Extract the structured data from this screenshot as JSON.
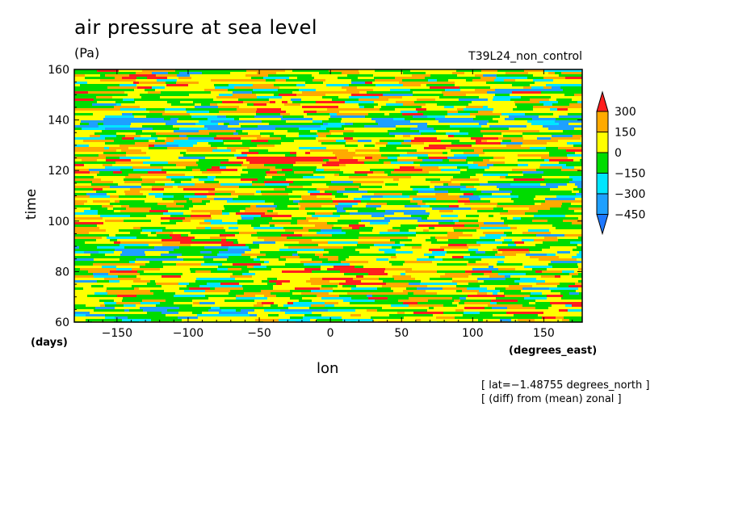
{
  "chart_data": {
    "type": "heatmap",
    "title": "air pressure at sea level",
    "units": "(Pa)",
    "run_label": "T39L24_non_control",
    "xlabel": "lon",
    "x_unit": "(degrees_east)",
    "ylabel": "time",
    "y_unit": "(days)",
    "xlim": [
      -180,
      177
    ],
    "ylim": [
      60,
      160
    ],
    "x_ticks": [
      -150,
      -100,
      -50,
      0,
      50,
      100,
      150
    ],
    "x_tick_labels": [
      "−150",
      "−100",
      "−50",
      "0",
      "50",
      "100",
      "150"
    ],
    "y_ticks": [
      60,
      80,
      100,
      120,
      140,
      160
    ],
    "notes": [
      "[ lat=−1.48755 degrees_north ]",
      "[ (diff) from (mean) zonal ]"
    ],
    "colorbar": {
      "levels": [
        -450,
        -300,
        -150,
        0,
        150,
        300
      ],
      "labels": [
        "−450",
        "−300",
        "−150",
        "0",
        "150",
        "300"
      ],
      "colors": [
        "#1e78ff",
        "#1ea0ff",
        "#00e6ff",
        "#00dc00",
        "#ffff00",
        "#ffaa00",
        "#ff1e1e"
      ],
      "extend": "both"
    },
    "warm_bands": [
      {
        "lon": [
          -70,
          20
        ],
        "time": [
          143,
          148
        ]
      },
      {
        "lon": [
          -60,
          30
        ],
        "time": [
          122,
          128
        ]
      },
      {
        "lon": [
          -40,
          40
        ],
        "time": [
          75,
          82
        ]
      },
      {
        "lon": [
          60,
          120
        ],
        "time": [
          128,
          134
        ]
      },
      {
        "lon": [
          -120,
          -70
        ],
        "time": [
          90,
          95
        ]
      }
    ],
    "cool_bands": [
      {
        "lon": [
          -180,
          177
        ],
        "time": [
          136,
          142
        ]
      },
      {
        "lon": [
          0,
          80
        ],
        "time": [
          100,
          106
        ]
      },
      {
        "lon": [
          -180,
          -60
        ],
        "time": [
          83,
          90
        ]
      },
      {
        "lon": [
          -180,
          0
        ],
        "time": [
          61,
          66
        ]
      },
      {
        "lon": [
          100,
          177
        ],
        "time": [
          108,
          116
        ]
      }
    ]
  }
}
